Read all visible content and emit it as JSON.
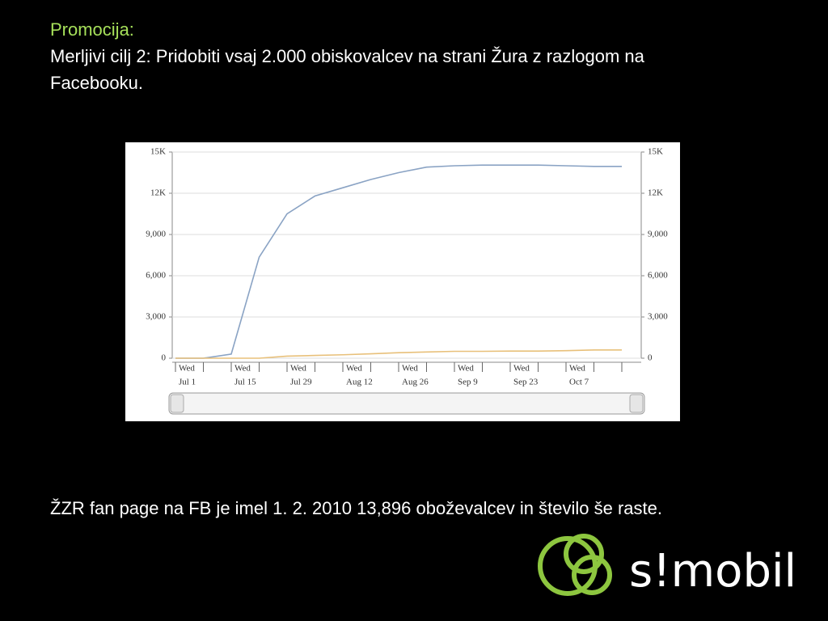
{
  "slide": {
    "title": "Promocija:",
    "body": "Merljivi cilj 2: Pridobiti vsaj 2.000 obiskovalcev na strani Žura z razlogom na Facebooku.",
    "footer_text": "ŽZR fan page na FB je imel 1. 2. 2010 13,896 oboževalcev in število še raste.",
    "logo": "s!mobil"
  },
  "chart_data": {
    "type": "line",
    "weekday_label": "Wed",
    "categories": [
      "Jul 1",
      null,
      "Jul 15",
      null,
      "Jul 29",
      null,
      "Aug 12",
      null,
      "Aug 26",
      null,
      "Sep 9",
      null,
      "Sep 23",
      null,
      "Oct 7",
      null,
      null
    ],
    "series": [
      {
        "color": "#8aa3c4",
        "values": [
          0,
          0,
          300,
          7350,
          10500,
          11800,
          12400,
          13000,
          13500,
          13900,
          14000,
          14050,
          14050,
          14050,
          14000,
          13950,
          13950
        ]
      },
      {
        "color": "#e8c07a",
        "values": [
          0,
          0,
          0,
          0,
          150,
          200,
          250,
          320,
          400,
          450,
          500,
          500,
          520,
          520,
          550,
          600,
          600
        ]
      }
    ],
    "ylim": [
      0,
      15000
    ],
    "yticks": [
      0,
      {
        "value": 3000,
        "label": "3,000"
      },
      {
        "value": 6000,
        "label": "6,000"
      },
      {
        "value": 9000,
        "label": "9,000"
      },
      {
        "value": 12000,
        "label": "12K"
      },
      {
        "value": 15000,
        "label": "15K"
      }
    ],
    "grid": true
  }
}
